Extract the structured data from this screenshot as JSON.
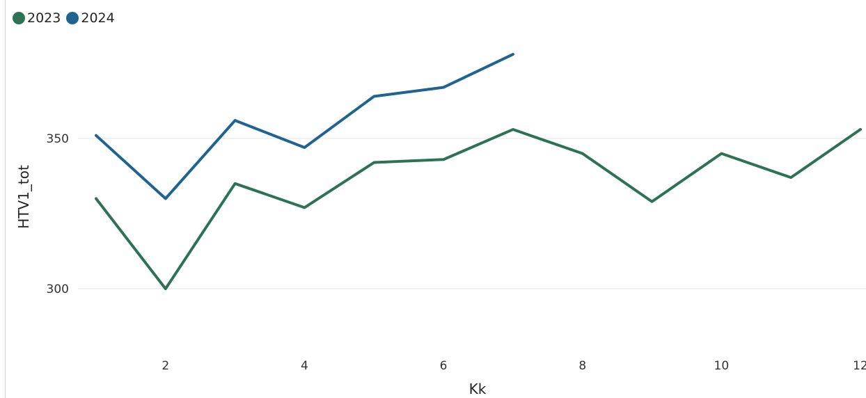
{
  "chart_data": {
    "type": "line",
    "xlabel": "Kk",
    "ylabel": "HTV1_tot",
    "x_ticks": [
      2,
      4,
      6,
      8,
      10,
      12
    ],
    "y_ticks": [
      300,
      350
    ],
    "xlim": [
      1,
      12
    ],
    "ylim": [
      278,
      378
    ],
    "grid": true,
    "legend_position": "top-left",
    "series": [
      {
        "name": "2023",
        "color": "#2e7256",
        "x": [
          1,
          2,
          3,
          4,
          5,
          6,
          7,
          8,
          9,
          10,
          11,
          12
        ],
        "values": [
          330,
          300,
          335,
          327,
          342,
          343,
          353,
          345,
          329,
          345,
          337,
          353
        ]
      },
      {
        "name": "2024",
        "color": "#1f6391",
        "x": [
          1,
          2,
          3,
          4,
          5,
          6,
          7
        ],
        "values": [
          351,
          330,
          356,
          347,
          364,
          367,
          378
        ]
      }
    ]
  }
}
